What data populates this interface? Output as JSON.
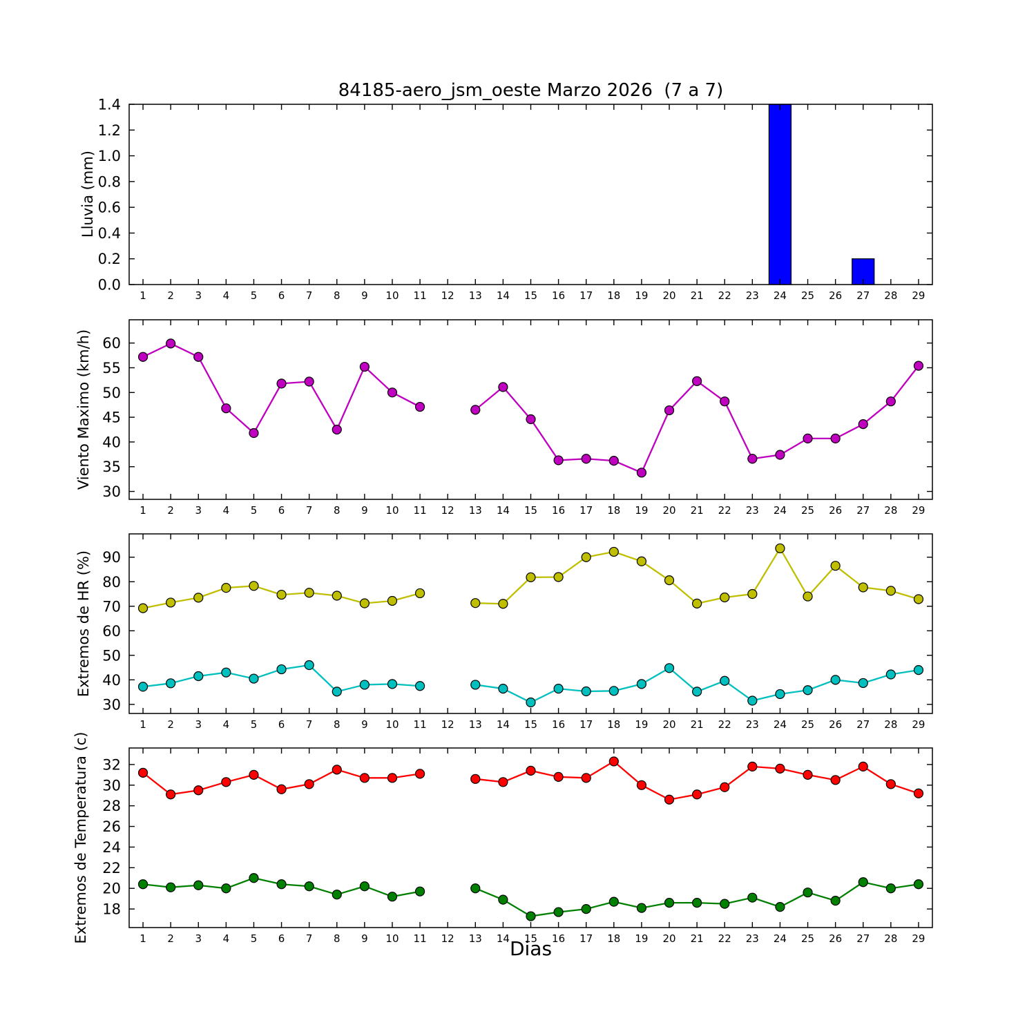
{
  "title": "84185-aero_jsm_oeste Marzo 2026  (7 a 7)",
  "xlabel": "Dias",
  "axes": {
    "xlim": [
      0.5,
      29.5
    ],
    "xticks": [
      1,
      2,
      3,
      4,
      5,
      6,
      7,
      8,
      9,
      10,
      11,
      12,
      13,
      14,
      15,
      16,
      17,
      18,
      19,
      20,
      21,
      22,
      23,
      24,
      25,
      26,
      27,
      28,
      29
    ],
    "missing_day": 12,
    "axis_color": "#000000"
  },
  "chart_data": [
    {
      "type": "bar",
      "name": "lluvia",
      "ylabel": "Lluvia (mm)",
      "ylim": [
        0,
        1.4
      ],
      "yticks": [
        0,
        0.2,
        0.4,
        0.6,
        0.8,
        1.0,
        1.2,
        1.4
      ],
      "ytick_labels": [
        "0.0",
        "0.2",
        "0.4",
        "0.6",
        "0.8",
        "1.0",
        "1.2",
        "1.4"
      ],
      "color": "#0000ff",
      "days": [
        1,
        2,
        3,
        4,
        5,
        6,
        7,
        8,
        9,
        10,
        11,
        13,
        14,
        15,
        16,
        17,
        18,
        19,
        20,
        21,
        22,
        23,
        24,
        25,
        26,
        27,
        28,
        29
      ],
      "values": [
        0,
        0,
        0,
        0,
        0,
        0,
        0,
        0,
        0,
        0,
        0,
        0,
        0,
        0,
        0,
        0,
        0,
        0,
        0,
        0,
        0,
        0,
        1.4,
        0,
        0,
        0.2,
        0,
        0
      ]
    },
    {
      "type": "line",
      "name": "viento-maximo",
      "ylabel": "Viento Maximo (km/h)",
      "ylim": [
        28.4,
        64.7
      ],
      "yticks": [
        30,
        35,
        40,
        45,
        50,
        55,
        60
      ],
      "ytick_labels": [
        "30",
        "35",
        "40",
        "45",
        "50",
        "55",
        "60"
      ],
      "series": [
        {
          "name": "viento",
          "color": "#bf00bf",
          "days": [
            1,
            2,
            3,
            4,
            5,
            6,
            7,
            8,
            9,
            10,
            11,
            13,
            14,
            15,
            16,
            17,
            18,
            19,
            20,
            21,
            22,
            23,
            24,
            25,
            26,
            27,
            28,
            29
          ],
          "values": [
            57.2,
            59.9,
            57.2,
            46.8,
            41.8,
            51.8,
            52.2,
            42.5,
            55.2,
            50.0,
            47.1,
            46.5,
            51.1,
            44.6,
            36.3,
            36.6,
            36.2,
            33.8,
            46.4,
            52.3,
            48.2,
            36.6,
            37.4,
            40.7,
            40.7,
            43.6,
            48.2,
            55.4
          ]
        }
      ]
    },
    {
      "type": "line",
      "name": "extremos-hr",
      "ylabel": "Extremos de HR (%)",
      "ylim": [
        26.3,
        99.5
      ],
      "yticks": [
        30,
        40,
        50,
        60,
        70,
        80,
        90
      ],
      "ytick_labels": [
        "30",
        "40",
        "50",
        "60",
        "70",
        "80",
        "90"
      ],
      "series": [
        {
          "name": "hr-maxima",
          "color": "#bfbf00",
          "days": [
            1,
            2,
            3,
            4,
            5,
            6,
            7,
            8,
            9,
            10,
            11,
            13,
            14,
            15,
            16,
            17,
            18,
            19,
            20,
            21,
            22,
            23,
            24,
            25,
            26,
            27,
            28,
            29
          ],
          "values": [
            69.2,
            71.5,
            73.5,
            77.5,
            78.3,
            74.7,
            75.5,
            74.3,
            71.2,
            72.2,
            75.3,
            71.3,
            71.0,
            81.8,
            81.9,
            90.0,
            92.2,
            88.3,
            80.6,
            71.1,
            73.6,
            75.0,
            93.6,
            74.0,
            86.5,
            77.7,
            76.3,
            72.9
          ]
        },
        {
          "name": "hr-minima",
          "color": "#00bfbf",
          "days": [
            1,
            2,
            3,
            4,
            5,
            6,
            7,
            8,
            9,
            10,
            11,
            13,
            14,
            15,
            16,
            17,
            18,
            19,
            20,
            21,
            22,
            23,
            24,
            25,
            26,
            27,
            28,
            29
          ],
          "values": [
            37.2,
            38.6,
            41.5,
            43.0,
            40.5,
            44.3,
            46.0,
            35.2,
            38.0,
            38.3,
            37.5,
            38.0,
            36.4,
            30.8,
            36.4,
            35.3,
            35.5,
            38.3,
            44.8,
            35.2,
            39.6,
            31.5,
            34.2,
            35.8,
            40.0,
            38.7,
            42.2,
            44.0
          ]
        }
      ]
    },
    {
      "type": "line",
      "name": "extremos-temperatura",
      "ylabel": "Extremos de Temperatura (c)",
      "ylim": [
        16.2,
        33.6
      ],
      "yticks": [
        18,
        20,
        22,
        24,
        26,
        28,
        30,
        32
      ],
      "ytick_labels": [
        "18",
        "20",
        "22",
        "24",
        "26",
        "28",
        "30",
        "32"
      ],
      "series": [
        {
          "name": "temperatura-maxima",
          "color": "#ff0000",
          "days": [
            1,
            2,
            3,
            4,
            5,
            6,
            7,
            8,
            9,
            10,
            11,
            13,
            14,
            15,
            16,
            17,
            18,
            19,
            20,
            21,
            22,
            23,
            24,
            25,
            26,
            27,
            28,
            29
          ],
          "values": [
            31.2,
            29.1,
            29.5,
            30.3,
            31.0,
            29.6,
            30.1,
            31.5,
            30.7,
            30.7,
            31.1,
            30.6,
            30.3,
            31.4,
            30.8,
            30.7,
            32.3,
            30.0,
            28.6,
            29.1,
            29.8,
            31.8,
            31.6,
            31.0,
            30.5,
            31.8,
            30.1,
            29.2
          ]
        },
        {
          "name": "temperatura-minima",
          "color": "#008000",
          "days": [
            1,
            2,
            3,
            4,
            5,
            6,
            7,
            8,
            9,
            10,
            11,
            13,
            14,
            15,
            16,
            17,
            18,
            19,
            20,
            21,
            22,
            23,
            24,
            25,
            26,
            27,
            28,
            29
          ],
          "values": [
            20.4,
            20.1,
            20.3,
            20.0,
            21.0,
            20.4,
            20.2,
            19.4,
            20.2,
            19.2,
            19.7,
            20.0,
            18.9,
            17.3,
            17.7,
            18.0,
            18.7,
            18.1,
            18.6,
            18.6,
            18.5,
            19.1,
            18.2,
            19.6,
            18.8,
            20.6,
            20.0,
            20.4
          ]
        }
      ]
    }
  ]
}
